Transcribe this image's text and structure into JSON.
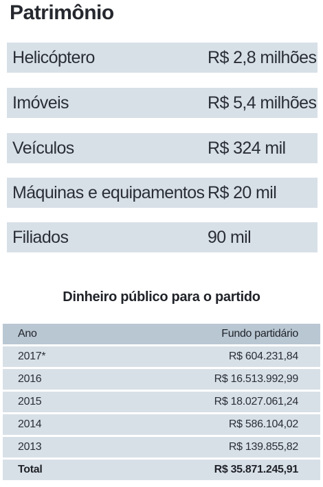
{
  "title": "Patrimônio",
  "assets": [
    {
      "label": "Helicóptero",
      "value": "R$ 2,8 milhões"
    },
    {
      "label": "Imóveis",
      "value": "R$ 5,4 milhões"
    },
    {
      "label": "Veículos",
      "value": "R$ 324 mil"
    },
    {
      "label": "Máquinas e equipamentos",
      "value": "R$ 20 mil"
    },
    {
      "label": "Filiados",
      "value": "90 mil"
    }
  ],
  "funding": {
    "title": "Dinheiro público para o partido",
    "headers": {
      "year": "Ano",
      "fund": "Fundo partidário"
    },
    "rows": [
      {
        "year": "2017*",
        "fund": "R$ 604.231,84"
      },
      {
        "year": "2016",
        "fund": "R$ 16.513.992,99"
      },
      {
        "year": "2015",
        "fund": "R$ 18.027.061,24"
      },
      {
        "year": "2014",
        "fund": "R$ 586.104,02"
      },
      {
        "year": "2013",
        "fund": "R$ 139.855,82"
      }
    ],
    "total": {
      "label": "Total",
      "value": "R$ 35.871.245,91"
    }
  }
}
